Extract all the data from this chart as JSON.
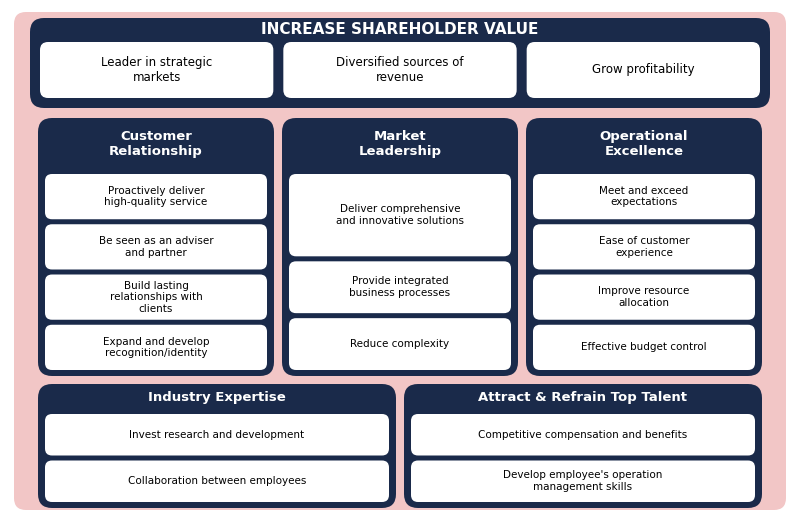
{
  "background_color": "#f2c6c6",
  "dark_navy": "#1a2a4a",
  "white": "#ffffff",
  "title": "INCREASE SHAREHOLDER VALUE",
  "top_boxes": [
    "Leader in strategic\nmarkets",
    "Diversified sources of\nrevenue",
    "Grow profitability"
  ],
  "mid_headers": [
    "Customer\nRelationship",
    "Market\nLeadership",
    "Operational\nExcellence"
  ],
  "mid_col1": [
    "Proactively deliver\nhigh-quality service",
    "Be seen as an adviser\nand partner",
    "Build lasting\nrelationships with\nclients",
    "Expand and develop\nrecognition/identity"
  ],
  "mid_col2": [
    "Deliver comprehensive\nand innovative solutions",
    "Provide integrated\nbusiness processes",
    "Reduce complexity"
  ],
  "mid_col3": [
    "Meet and exceed\nexpectations",
    "Ease of customer\nexperience",
    "Improve resource\nallocation",
    "Effective budget control"
  ],
  "bot_headers": [
    "Industry Expertise",
    "Attract & Refrain Top Talent"
  ],
  "bot_col1": [
    "Invest research and development",
    "Collaboration between employees"
  ],
  "bot_col2": [
    "Competitive compensation and benefits",
    "Develop employee's operation\nmanagement skills"
  ]
}
